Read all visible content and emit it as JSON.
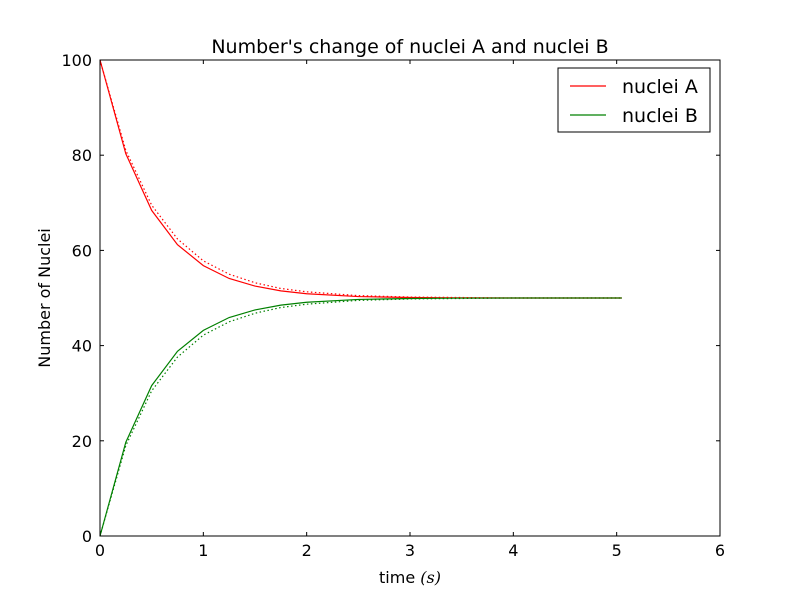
{
  "chart_data": {
    "type": "line",
    "title": "Number's change of nuclei A and nuclei B",
    "xlabel": "time",
    "xlabel_math": "(s)",
    "ylabel": "Number of Nuclei",
    "xlim": [
      0,
      6
    ],
    "ylim": [
      0,
      100
    ],
    "xticks": [
      "0",
      "1",
      "2",
      "3",
      "4",
      "5",
      "6"
    ],
    "yticks": [
      "0",
      "20",
      "40",
      "60",
      "80",
      "100"
    ],
    "grid": false,
    "legend_position": "top-right",
    "series": [
      {
        "name": "nuclei A",
        "color": "#ff0000",
        "style": "solid",
        "x": [
          0,
          0.25,
          0.5,
          0.75,
          1.0,
          1.25,
          1.5,
          1.75,
          2.0,
          2.5,
          3.0,
          3.5,
          4.0,
          4.5,
          5.05
        ],
        "y": [
          100,
          80.3,
          68.4,
          61.2,
          56.8,
          54.1,
          52.5,
          51.5,
          50.9,
          50.3,
          50.1,
          50.0,
          50.0,
          50.0,
          50.0
        ]
      },
      {
        "name": "nuclei B",
        "color": "#008000",
        "style": "solid",
        "x": [
          0,
          0.25,
          0.5,
          0.75,
          1.0,
          1.25,
          1.5,
          1.75,
          2.0,
          2.5,
          3.0,
          3.5,
          4.0,
          4.5,
          5.05
        ],
        "y": [
          0,
          19.7,
          31.6,
          38.8,
          43.2,
          45.9,
          47.5,
          48.5,
          49.1,
          49.7,
          49.9,
          50.0,
          50.0,
          50.0,
          50.0
        ]
      },
      {
        "color": "#ff0000",
        "style": "dotted",
        "x": [
          0,
          0.25,
          0.5,
          0.75,
          1.0,
          1.25,
          1.5,
          1.75,
          2.0,
          2.5,
          3.0,
          3.5,
          4.0,
          4.5,
          5.05
        ],
        "y": [
          100,
          81.0,
          69.5,
          62.4,
          57.8,
          55.0,
          53.2,
          52.0,
          51.3,
          50.5,
          50.2,
          50.1,
          50.0,
          50.0,
          50.0
        ]
      },
      {
        "color": "#008000",
        "style": "dotted",
        "x": [
          0,
          0.25,
          0.5,
          0.75,
          1.0,
          1.25,
          1.5,
          1.75,
          2.0,
          2.5,
          3.0,
          3.5,
          4.0,
          4.5,
          5.05
        ],
        "y": [
          0,
          19.0,
          30.5,
          37.6,
          42.2,
          45.0,
          46.8,
          48.0,
          48.7,
          49.5,
          49.8,
          49.9,
          50.0,
          50.0,
          50.0
        ]
      }
    ]
  }
}
